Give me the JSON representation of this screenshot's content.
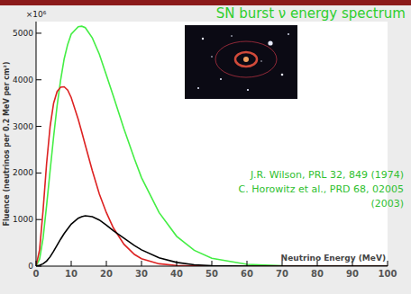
{
  "chart_data": {
    "type": "line",
    "title": "SN burst ν energy spectrum",
    "y_scale_label": "×10⁶",
    "x_label": "Neutrino Energy (MeV)",
    "y_label": "Fluence (neutrinos per 0.2 MeV per cm²)",
    "annotations": [
      "J.R. Wilson, PRL 32, 849 (1974)",
      "C. Horowitz et al., PRD 68, 02005",
      "(2003)"
    ],
    "x": [
      0,
      1,
      2,
      3,
      4,
      5,
      6,
      7,
      8,
      9,
      10,
      12,
      13,
      14,
      16,
      18,
      20,
      22,
      25,
      28,
      30,
      35,
      40,
      45,
      50,
      60,
      70,
      80,
      100
    ],
    "series": [
      {
        "color": "#44ee44",
        "values": [
          0,
          150,
          600,
          1300,
          2050,
          2780,
          3450,
          4000,
          4450,
          4760,
          4980,
          5140,
          5150,
          5120,
          4900,
          4550,
          4100,
          3650,
          2950,
          2300,
          1900,
          1150,
          640,
          340,
          170,
          40,
          10,
          0,
          0
        ]
      },
      {
        "color": "#dd2222",
        "values": [
          0,
          350,
          1200,
          2200,
          3000,
          3500,
          3750,
          3840,
          3850,
          3780,
          3620,
          3150,
          2880,
          2600,
          2050,
          1550,
          1150,
          820,
          470,
          250,
          160,
          50,
          15,
          5,
          0,
          0,
          0,
          0,
          0
        ]
      },
      {
        "color": "#000000",
        "values": [
          0,
          20,
          50,
          110,
          200,
          320,
          450,
          580,
          700,
          800,
          900,
          1030,
          1060,
          1080,
          1060,
          990,
          880,
          760,
          600,
          440,
          350,
          180,
          80,
          30,
          10,
          0,
          0,
          0,
          0
        ]
      }
    ],
    "xlim": [
      0,
      100
    ],
    "xticks": [
      0,
      10,
      20,
      30,
      40,
      50,
      60,
      70,
      80,
      90,
      100
    ],
    "ylim": [
      0,
      5250
    ],
    "yticks": [
      0,
      1000,
      2000,
      3000,
      4000,
      5000
    ],
    "grid": false
  }
}
